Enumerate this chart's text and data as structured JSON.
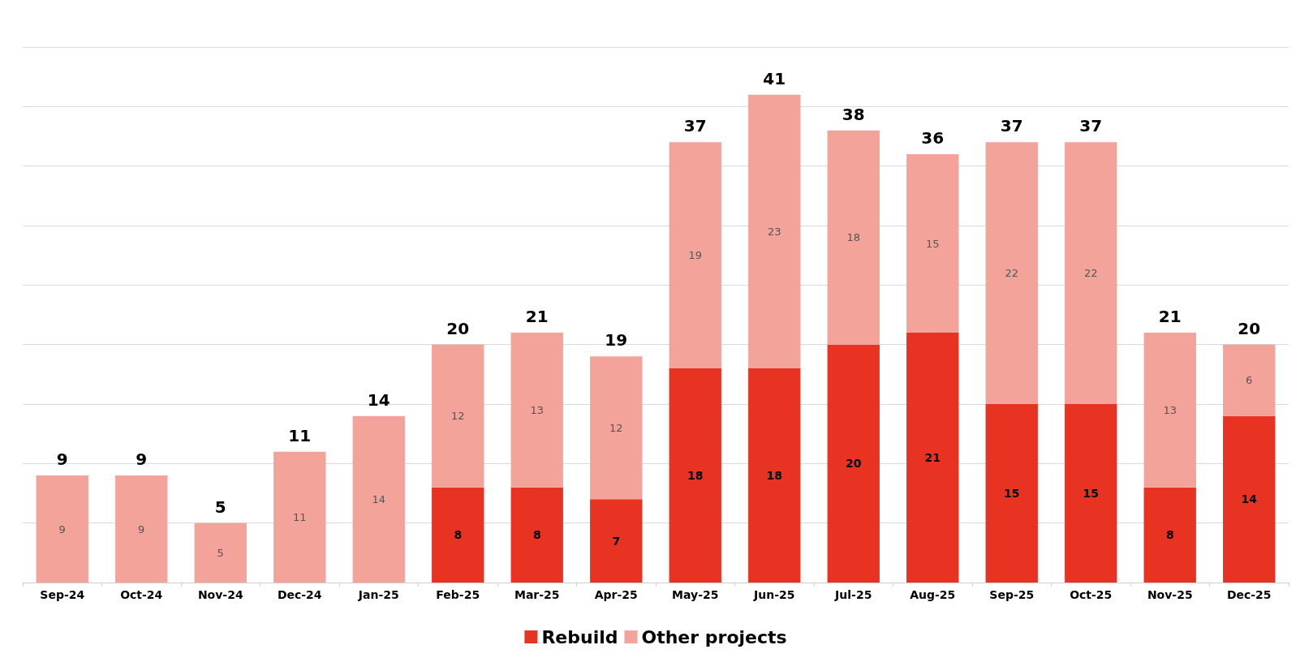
{
  "chart_data": {
    "type": "bar",
    "stacked": true,
    "categories": [
      "Sep-24",
      "Oct-24",
      "Nov-24",
      "Dec-24",
      "Jan-25",
      "Feb-25",
      "Mar-25",
      "Apr-25",
      "May-25",
      "Jun-25",
      "Jul-25",
      "Aug-25",
      "Sep-25",
      "Oct-25",
      "Nov-25",
      "Dec-25"
    ],
    "series": [
      {
        "name": "Rebuild",
        "color": "#e83323",
        "values": [
          null,
          null,
          null,
          null,
          null,
          8,
          8,
          7,
          18,
          18,
          20,
          21,
          15,
          15,
          8,
          14
        ]
      },
      {
        "name": "Other projects",
        "color": "#f4a39b",
        "values": [
          9,
          9,
          5,
          11,
          14,
          12,
          13,
          12,
          19,
          23,
          18,
          15,
          22,
          22,
          13,
          6
        ]
      }
    ],
    "totals": [
      "9",
      "9",
      "5",
      "11",
      "14",
      "20",
      "21",
      "19",
      "37",
      "41",
      "38",
      "36",
      "37",
      "37",
      "21",
      "20"
    ],
    "ylim": [
      0,
      45
    ],
    "yticks": [
      {
        "value": 0,
        "label": null
      },
      {
        "value": 5,
        "label": null
      },
      {
        "value": 10,
        "label": null
      },
      {
        "value": 15,
        "label": null
      },
      {
        "value": 20,
        "label": null
      },
      {
        "value": 25,
        "label": null
      },
      {
        "value": 30,
        "label": null
      },
      {
        "value": 35,
        "label": null
      },
      {
        "value": 40,
        "label": null
      },
      {
        "value": 45,
        "label": null
      }
    ],
    "tick_labels": "x",
    "grid": "y",
    "data_labels": true,
    "legend": "bottom"
  }
}
